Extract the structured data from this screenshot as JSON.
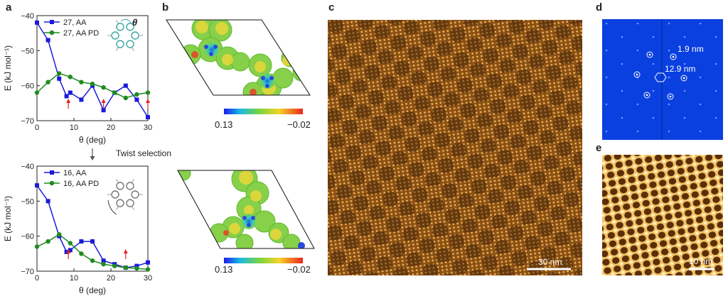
{
  "panels": {
    "a": "a",
    "b": "b",
    "c": "c",
    "d": "d",
    "e": "e"
  },
  "theta_symbol": "θ",
  "twist_selection": "Twist selection",
  "esp_scale": {
    "low": "0.13",
    "high": "−0.02"
  },
  "fft_labels": {
    "small": "1.9 nm",
    "large": "12.9 nm"
  },
  "scalebars": {
    "c": "30 nm",
    "e": "10 nm"
  },
  "colors": {
    "blue_series": "#1a1adb",
    "green_series": "#1e8c1e",
    "arrow": "#e8231f",
    "fft_bg": "#0a3fe0",
    "stm_dark": "#6b3a0c",
    "stm_light": "#f3c266"
  },
  "chart_data": [
    {
      "type": "line",
      "ylabel": "E (kJ mol⁻¹)",
      "xlabel": "θ (deg)",
      "xlim": [
        0,
        30
      ],
      "ylim": [
        -70,
        -40
      ],
      "xticks": [
        0,
        10,
        20,
        30
      ],
      "yticks": [
        -40,
        -50,
        -60,
        -70
      ],
      "legend": "top-left",
      "series": [
        {
          "name": "27, AA",
          "color": "#1a1adb",
          "marker": "square",
          "x": [
            0,
            3,
            6,
            8,
            9,
            12,
            15,
            18,
            21,
            24,
            27,
            30
          ],
          "y": [
            -42,
            -47,
            -58,
            -63,
            -62,
            -64,
            -60,
            -67,
            -62,
            -60,
            -64,
            -69
          ]
        },
        {
          "name": "27, AA PD",
          "color": "#1e8c1e",
          "marker": "circle",
          "x": [
            0,
            3,
            6,
            9,
            12,
            15,
            18,
            21,
            24,
            27,
            30
          ],
          "y": [
            -62,
            -59,
            -56.5,
            -57.5,
            -59,
            -59.5,
            -60.5,
            -62,
            -63.5,
            -62.5,
            -62
          ]
        }
      ],
      "arrows_at_x": [
        8.5,
        18,
        30
      ]
    },
    {
      "type": "line",
      "ylabel": "E (kJ mol⁻¹)",
      "xlabel": "θ (deg)",
      "xlim": [
        0,
        30
      ],
      "ylim": [
        -70,
        -40
      ],
      "xticks": [
        0,
        10,
        20,
        30
      ],
      "yticks": [
        -40,
        -50,
        -60,
        -70
      ],
      "legend": "top-left",
      "series": [
        {
          "name": "16, AA",
          "color": "#1a1adb",
          "marker": "square",
          "x": [
            0,
            3,
            6,
            8,
            9,
            12,
            15,
            18,
            21,
            24,
            27,
            30
          ],
          "y": [
            -45.5,
            -50,
            -60,
            -64.5,
            -64,
            -61.5,
            -61.5,
            -67,
            -68,
            -69,
            -68.5,
            -67.5
          ]
        },
        {
          "name": "16, AA PD",
          "color": "#1e8c1e",
          "marker": "circle",
          "x": [
            0,
            3,
            6,
            9,
            12,
            15,
            18,
            21,
            24,
            27,
            30
          ],
          "y": [
            -63,
            -61.5,
            -59.5,
            -62,
            -65,
            -67,
            -68,
            -68.5,
            -69,
            -69.2,
            -69.5
          ]
        }
      ],
      "arrows_at_x": [
        8.5,
        24
      ]
    }
  ]
}
